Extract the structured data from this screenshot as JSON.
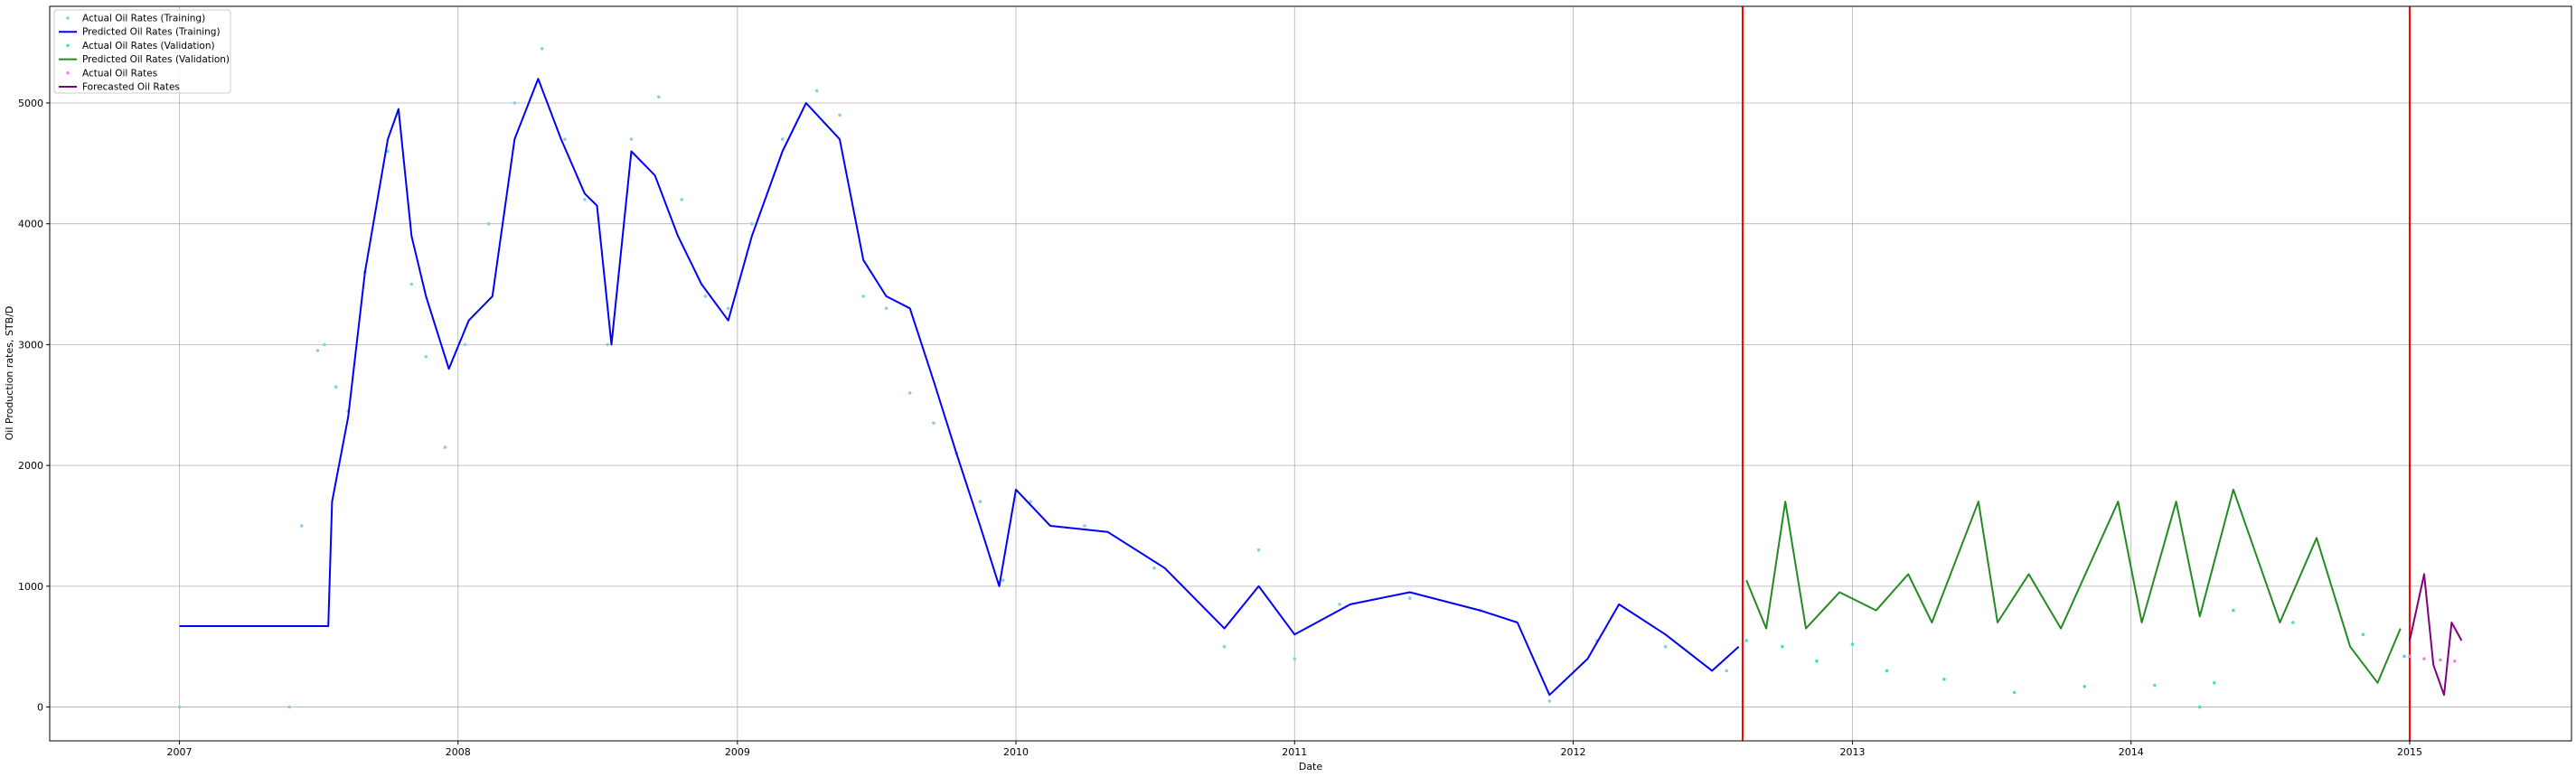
{
  "chart_data": {
    "type": "line",
    "title": "",
    "xlabel": "Date",
    "ylabel": "Oil Production rates, STB/D",
    "x_ticks": [
      "2007",
      "2008",
      "2009",
      "2010",
      "2011",
      "2012",
      "2013",
      "2014",
      "2015"
    ],
    "x_range": [
      "2006-07-15",
      "2015-08-01"
    ],
    "y_ticks": [
      0,
      1000,
      2000,
      3000,
      4000,
      5000
    ],
    "ylim": [
      -280,
      5800
    ],
    "grid": true,
    "legend_position": "top-left",
    "vertical_lines": [
      {
        "x": "2012-08-10",
        "color": "#ff0000"
      },
      {
        "x": "2015-01-01",
        "color": "#ff0000"
      }
    ],
    "series": [
      {
        "name": "Actual Oil Rates (Training)",
        "style": "dots",
        "color": "#87ceeb",
        "points": [
          [
            "2007-01-01",
            0
          ],
          [
            "2007-05-25",
            0
          ],
          [
            "2007-06-10",
            1500
          ],
          [
            "2007-07-01",
            2950
          ],
          [
            "2007-07-10",
            3000
          ],
          [
            "2007-07-25",
            2650
          ],
          [
            "2007-08-10",
            2450
          ],
          [
            "2007-09-01",
            3600
          ],
          [
            "2007-10-01",
            4600
          ],
          [
            "2007-11-01",
            3500
          ],
          [
            "2007-11-20",
            2900
          ],
          [
            "2007-12-15",
            2150
          ],
          [
            "2008-01-10",
            3000
          ],
          [
            "2008-02-10",
            4000
          ],
          [
            "2008-03-15",
            5000
          ],
          [
            "2008-04-20",
            5450
          ],
          [
            "2008-05-20",
            4700
          ],
          [
            "2008-06-15",
            4200
          ],
          [
            "2008-07-15",
            3000
          ],
          [
            "2008-08-15",
            4700
          ],
          [
            "2008-09-20",
            5050
          ],
          [
            "2008-10-20",
            4200
          ],
          [
            "2008-11-20",
            3400
          ],
          [
            "2008-12-20",
            3300
          ],
          [
            "2009-01-20",
            4000
          ],
          [
            "2009-03-01",
            4700
          ],
          [
            "2009-04-15",
            5100
          ],
          [
            "2009-05-15",
            4900
          ],
          [
            "2009-06-15",
            3400
          ],
          [
            "2009-07-15",
            3300
          ],
          [
            "2009-08-15",
            2600
          ],
          [
            "2009-09-15",
            2350
          ],
          [
            "2009-10-15",
            2100
          ],
          [
            "2009-11-15",
            1700
          ],
          [
            "2009-12-15",
            1050
          ],
          [
            "2010-01-20",
            1700
          ],
          [
            "2010-04-01",
            1500
          ],
          [
            "2010-07-01",
            1150
          ],
          [
            "2010-10-01",
            500
          ],
          [
            "2010-11-15",
            1300
          ],
          [
            "2011-01-01",
            400
          ],
          [
            "2011-03-01",
            850
          ],
          [
            "2011-06-01",
            900
          ],
          [
            "2011-09-01",
            800
          ],
          [
            "2011-12-01",
            50
          ],
          [
            "2012-02-01",
            550
          ],
          [
            "2012-05-01",
            500
          ],
          [
            "2012-07-20",
            300
          ]
        ]
      },
      {
        "name": "Predicted Oil Rates (Training)",
        "style": "line",
        "color": "#0000ff",
        "points": [
          [
            "2007-01-01",
            670
          ],
          [
            "2007-07-15",
            670
          ],
          [
            "2007-07-20",
            1700
          ],
          [
            "2007-08-10",
            2400
          ],
          [
            "2007-09-01",
            3600
          ],
          [
            "2007-10-01",
            4700
          ],
          [
            "2007-10-15",
            4950
          ],
          [
            "2007-11-01",
            3900
          ],
          [
            "2007-11-20",
            3400
          ],
          [
            "2007-12-20",
            2800
          ],
          [
            "2008-01-15",
            3200
          ],
          [
            "2008-02-15",
            3400
          ],
          [
            "2008-03-15",
            4700
          ],
          [
            "2008-04-15",
            5200
          ],
          [
            "2008-05-15",
            4700
          ],
          [
            "2008-06-15",
            4250
          ],
          [
            "2008-07-01",
            4150
          ],
          [
            "2008-07-20",
            3000
          ],
          [
            "2008-08-15",
            4600
          ],
          [
            "2008-09-15",
            4400
          ],
          [
            "2008-10-15",
            3900
          ],
          [
            "2008-11-15",
            3500
          ],
          [
            "2008-12-20",
            3200
          ],
          [
            "2009-01-20",
            3900
          ],
          [
            "2009-03-01",
            4600
          ],
          [
            "2009-04-01",
            5000
          ],
          [
            "2009-05-15",
            4700
          ],
          [
            "2009-06-15",
            3700
          ],
          [
            "2009-07-15",
            3400
          ],
          [
            "2009-08-15",
            3300
          ],
          [
            "2009-09-15",
            2700
          ],
          [
            "2009-10-15",
            2100
          ],
          [
            "2009-11-15",
            1500
          ],
          [
            "2009-12-10",
            1000
          ],
          [
            "2010-01-01",
            1800
          ],
          [
            "2010-02-15",
            1500
          ],
          [
            "2010-05-01",
            1450
          ],
          [
            "2010-07-15",
            1150
          ],
          [
            "2010-10-01",
            650
          ],
          [
            "2010-11-15",
            1000
          ],
          [
            "2011-01-01",
            600
          ],
          [
            "2011-03-15",
            850
          ],
          [
            "2011-06-01",
            950
          ],
          [
            "2011-09-01",
            800
          ],
          [
            "2011-10-20",
            700
          ],
          [
            "2011-12-01",
            100
          ],
          [
            "2012-01-20",
            400
          ],
          [
            "2012-03-01",
            850
          ],
          [
            "2012-05-01",
            600
          ],
          [
            "2012-07-01",
            300
          ],
          [
            "2012-08-05",
            500
          ]
        ]
      },
      {
        "name": "Actual Oil Rates (Validation)",
        "style": "dots",
        "color": "#40e0d0",
        "points": [
          [
            "2012-08-15",
            550
          ],
          [
            "2012-10-01",
            500
          ],
          [
            "2012-11-15",
            380
          ],
          [
            "2013-01-01",
            520
          ],
          [
            "2013-02-15",
            300
          ],
          [
            "2013-05-01",
            230
          ],
          [
            "2013-08-01",
            120
          ],
          [
            "2013-11-01",
            170
          ],
          [
            "2014-02-01",
            180
          ],
          [
            "2014-04-01",
            0
          ],
          [
            "2014-04-20",
            200
          ],
          [
            "2014-05-15",
            800
          ],
          [
            "2014-08-01",
            700
          ],
          [
            "2014-11-01",
            600
          ],
          [
            "2014-12-25",
            420
          ]
        ]
      },
      {
        "name": "Predicted Oil Rates (Validation)",
        "style": "line",
        "color": "#228b22",
        "points": [
          [
            "2012-08-15",
            1050
          ],
          [
            "2012-09-10",
            650
          ],
          [
            "2012-10-05",
            1700
          ],
          [
            "2012-11-01",
            650
          ],
          [
            "2012-12-15",
            950
          ],
          [
            "2013-02-01",
            800
          ],
          [
            "2013-03-15",
            1100
          ],
          [
            "2013-04-15",
            700
          ],
          [
            "2013-06-15",
            1700
          ],
          [
            "2013-07-10",
            700
          ],
          [
            "2013-08-20",
            1100
          ],
          [
            "2013-10-01",
            650
          ],
          [
            "2013-12-15",
            1700
          ],
          [
            "2014-01-15",
            700
          ],
          [
            "2014-03-01",
            1700
          ],
          [
            "2014-04-01",
            750
          ],
          [
            "2014-05-15",
            1800
          ],
          [
            "2014-07-15",
            700
          ],
          [
            "2014-09-01",
            1400
          ],
          [
            "2014-10-15",
            500
          ],
          [
            "2014-11-20",
            200
          ],
          [
            "2014-12-20",
            650
          ]
        ]
      },
      {
        "name": "Actual Oil Rates",
        "style": "dots",
        "color": "#ee82ee",
        "points": [
          [
            "2015-01-01",
            420
          ],
          [
            "2015-01-20",
            400
          ],
          [
            "2015-02-10",
            390
          ],
          [
            "2015-03-01",
            380
          ]
        ]
      },
      {
        "name": "Forecasted Oil Rates",
        "style": "line",
        "color": "#800080",
        "points": [
          [
            "2015-01-01",
            550
          ],
          [
            "2015-01-20",
            1100
          ],
          [
            "2015-02-01",
            350
          ],
          [
            "2015-02-15",
            100
          ],
          [
            "2015-02-25",
            700
          ],
          [
            "2015-03-10",
            550
          ]
        ]
      }
    ]
  }
}
